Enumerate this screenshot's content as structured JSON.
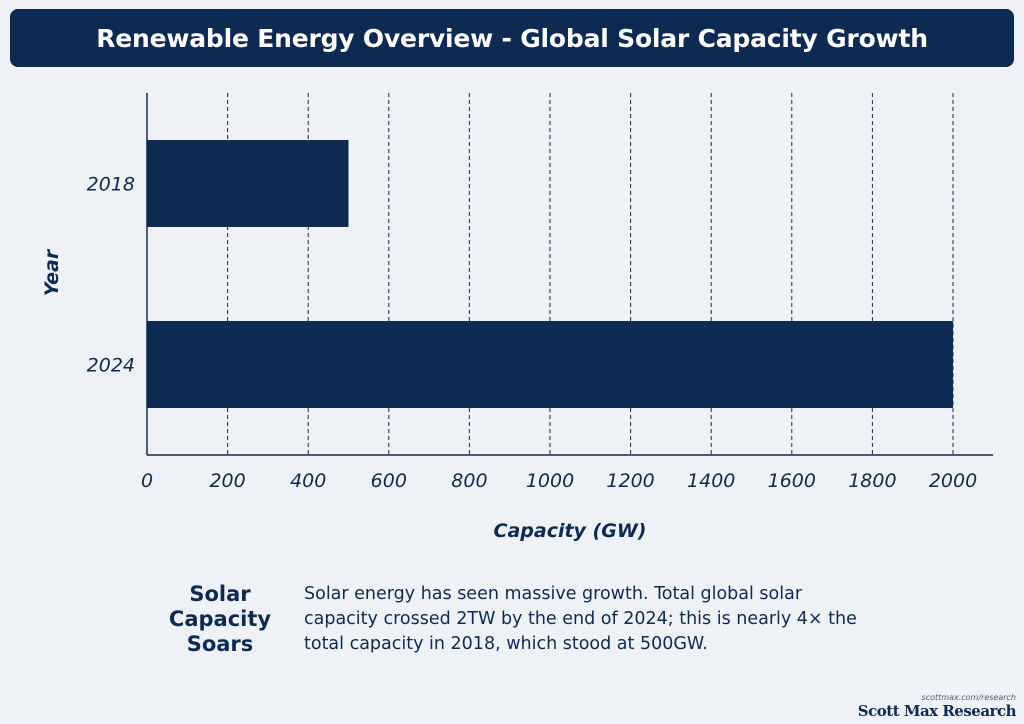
{
  "header": {
    "title": "Renewable Energy Overview - Global Solar Capacity Growth"
  },
  "chart_data": {
    "type": "bar",
    "orientation": "horizontal",
    "categories": [
      "2018",
      "2024"
    ],
    "values": [
      500,
      2000
    ],
    "xlabel": "Capacity (GW)",
    "ylabel": "Year",
    "xlim": [
      0,
      2100
    ],
    "xticks": [
      0,
      200,
      400,
      600,
      800,
      1000,
      1200,
      1400,
      1600,
      1800,
      2000
    ],
    "grid": "vertical dashed",
    "bar_color": "#0d2a52"
  },
  "summary": {
    "heading": "Solar Capacity Soars",
    "body": "Solar energy has seen massive growth. Total global solar capacity crossed 2TW by the end of 2024; this is nearly 4× the total capacity in 2018, which stood at 500GW."
  },
  "brand": {
    "url": "scottmax.com/research",
    "name": "Scott Max Research"
  },
  "colors": {
    "primary": "#0d2a52",
    "background": "#eef2f7"
  }
}
